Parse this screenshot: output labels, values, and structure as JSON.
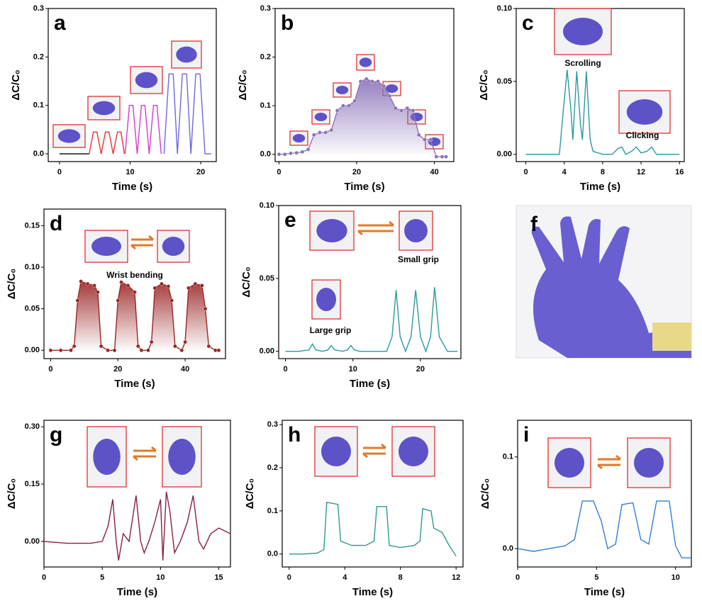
{
  "chart_data": [
    {
      "type": "line",
      "label": "a",
      "xlabel": "Time (s)",
      "ylabel": "ΔC/C₀",
      "xlim": [
        -1.6,
        22.2
      ],
      "ylim": [
        -0.016,
        0.3
      ],
      "xticks": [
        0,
        10,
        20
      ],
      "yticks": [
        {
          "value": 0,
          "label": "0.0"
        },
        0.1,
        0.2,
        0.3
      ],
      "series": [
        {
          "color": "#000000",
          "x": [
            0,
            1,
            2,
            3,
            4.2
          ],
          "values": [
            0,
            0,
            0,
            0,
            0
          ]
        },
        {
          "color": "#e8322d",
          "x": [
            4.2,
            4.8,
            5.3,
            5.9,
            6.5,
            7.0,
            7.6,
            8.2,
            8.7,
            9.2
          ],
          "values": [
            0,
            0.045,
            0.045,
            0,
            0.045,
            0.045,
            0,
            0.045,
            0.045,
            0
          ]
        },
        {
          "color": "#d43ad0",
          "x": [
            9.3,
            9.9,
            10.4,
            11.0,
            11.6,
            12.1,
            12.7,
            13.3,
            13.8,
            14.4
          ],
          "values": [
            0,
            0.1,
            0.1,
            0,
            0.1,
            0.1,
            0,
            0.1,
            0.1,
            0
          ]
        },
        {
          "color": "#6f66e0",
          "x": [
            14.8,
            15.5,
            16.1,
            16.7,
            17.4,
            18.0,
            18.6,
            19.3,
            19.9,
            20.6,
            21.5
          ],
          "values": [
            0,
            0.165,
            0.165,
            0,
            0.165,
            0.165,
            0,
            0.165,
            0.165,
            0,
            0
          ]
        }
      ]
    },
    {
      "type": "line",
      "label": "b",
      "xlabel": "Time (s)",
      "ylabel": "ΔC/C₀",
      "xlim": [
        -1,
        45
      ],
      "ylim": [
        -0.015,
        0.3
      ],
      "xticks": [
        0,
        20,
        40
      ],
      "yticks": [
        {
          "value": 0,
          "label": "0.0"
        },
        0.1,
        0.2,
        0.3
      ],
      "markers": true,
      "fill": true,
      "series": [
        {
          "color": "#8a72b8",
          "x": [
            0,
            1.5,
            3,
            4.5,
            6,
            7.5,
            9,
            10.5,
            12,
            13.5,
            15,
            16.5,
            18,
            19.5,
            21,
            22.5,
            24,
            25.5,
            27,
            28.5,
            30,
            31.5,
            33,
            34.5,
            36,
            37.5,
            39,
            40.5,
            42,
            43
          ],
          "values": [
            0,
            0,
            0.002,
            0.003,
            0.005,
            0.01,
            0.04,
            0.045,
            0.045,
            0.05,
            0.09,
            0.1,
            0.1,
            0.11,
            0.15,
            0.155,
            0.15,
            0.15,
            0.14,
            0.12,
            0.095,
            0.09,
            0.095,
            0.09,
            0.04,
            0.03,
            0.03,
            -0.005,
            -0.005,
            -0.005
          ]
        }
      ]
    },
    {
      "type": "line",
      "label": "c",
      "xlabel": "Time (s)",
      "ylabel": "ΔC/C₀",
      "xlim": [
        -1,
        16.5
      ],
      "ylim": [
        -0.005,
        0.1
      ],
      "xticks": [
        0,
        4,
        8,
        12,
        16
      ],
      "yticks": [
        {
          "value": 0,
          "label": "0.00"
        },
        0.05,
        {
          "value": 0.1,
          "label": "0.10"
        }
      ],
      "annotations": [
        "Scrolling",
        "Clicking"
      ],
      "series": [
        {
          "color": "#2a9a9e",
          "x": [
            0,
            2,
            3.5,
            3.9,
            4.3,
            4.7,
            4.9,
            5.3,
            5.7,
            5.9,
            6.3,
            6.7,
            7,
            8,
            9,
            9.6,
            10,
            10.4,
            11,
            11.5,
            12,
            12.6,
            13.1,
            13.6,
            14,
            16
          ],
          "values": [
            0,
            0,
            0,
            0.03,
            0.058,
            0.03,
            0.01,
            0.057,
            0.02,
            0.01,
            0.057,
            0.01,
            0.002,
            0,
            0,
            0.004,
            0.005,
            0,
            0.002,
            0.005,
            0.001,
            0.002,
            0.005,
            0,
            0,
            0
          ]
        }
      ]
    },
    {
      "type": "line",
      "label": "d",
      "xlabel": "Time (s)",
      "ylabel": "ΔC/C₀",
      "xlim": [
        -2,
        52
      ],
      "ylim": [
        -0.01,
        0.17
      ],
      "xticks": [
        0,
        20,
        40
      ],
      "yticks": [
        {
          "value": 0,
          "label": "0.00"
        },
        0.05,
        {
          "value": 0.1,
          "label": "0.10"
        },
        0.15
      ],
      "markers": true,
      "fill": true,
      "annotations": [
        "Wrist bending"
      ],
      "series": [
        {
          "color": "#9a2424",
          "x": [
            0,
            3,
            6,
            7,
            8,
            9,
            11,
            13,
            14,
            15,
            17,
            19,
            20,
            21,
            23,
            25,
            26,
            27,
            29,
            30,
            31,
            33,
            35,
            36,
            37,
            39,
            40,
            41,
            43,
            45,
            46,
            47,
            49,
            50
          ],
          "values": [
            0,
            0,
            0,
            0.005,
            0.06,
            0.083,
            0.08,
            0.078,
            0.07,
            0.005,
            0,
            0,
            0.06,
            0.082,
            0.078,
            0.07,
            0.005,
            0,
            0,
            0.01,
            0.075,
            0.08,
            0.077,
            0.06,
            0.005,
            0,
            0.01,
            0.075,
            0.08,
            0.078,
            0.05,
            0.005,
            0,
            0
          ]
        }
      ]
    },
    {
      "type": "line",
      "label": "e",
      "xlabel": "Time (s)",
      "ylabel": "ΔC/C₀",
      "xlim": [
        -1,
        26
      ],
      "ylim": [
        -0.005,
        0.1
      ],
      "xticks": [
        0,
        10,
        20
      ],
      "yticks": [
        {
          "value": 0,
          "label": "0.00"
        },
        0.05,
        {
          "value": 0.1,
          "label": "0.10"
        }
      ],
      "annotations": [
        "Large grip",
        "Small grip"
      ],
      "series": [
        {
          "color": "#2a9a9e",
          "x": [
            0,
            2,
            3.5,
            4,
            4.5,
            5.5,
            6.3,
            6.8,
            7.3,
            8.5,
            9.2,
            9.7,
            10.2,
            11,
            13,
            15,
            15.8,
            16.4,
            17,
            17.8,
            18.6,
            19.3,
            20,
            20.8,
            21.5,
            22.1,
            22.8,
            24,
            25.5
          ],
          "values": [
            0,
            0,
            0.001,
            0.005,
            0.001,
            0,
            0.001,
            0.004,
            0.001,
            0,
            0.001,
            0.004,
            0.001,
            0,
            0,
            0,
            0.01,
            0.042,
            0.01,
            0,
            0.01,
            0.042,
            0.01,
            0,
            0.01,
            0.044,
            0.01,
            0,
            0
          ]
        }
      ]
    },
    {
      "type": "line",
      "label": "g",
      "xlabel": "Time (s)",
      "ylabel": "ΔC/C₀",
      "xlim": [
        0,
        16
      ],
      "ylim": [
        -0.067,
        0.317
      ],
      "xticks": [
        0,
        5,
        10,
        15
      ],
      "yticks": [
        {
          "value": 0,
          "label": "0.00"
        },
        0.15,
        {
          "value": 0.3,
          "label": "0.30"
        }
      ],
      "series": [
        {
          "color": "#8a1f3c",
          "x": [
            0,
            2,
            4,
            5,
            5.5,
            5.9,
            6.2,
            6.4,
            6.8,
            7.3,
            7.9,
            8.3,
            8.6,
            9.0,
            9.5,
            10.0,
            10.2,
            10.5,
            10.8,
            11.2,
            11.7,
            12.3,
            12.8,
            13.3,
            13.7,
            14.3,
            15,
            16
          ],
          "values": [
            0,
            -0.005,
            -0.005,
            0,
            0.04,
            0.11,
            0,
            -0.05,
            0.02,
            0,
            0.12,
            0,
            -0.03,
            0,
            0.05,
            0.11,
            -0.05,
            0.13,
            0.08,
            -0.03,
            0,
            0.05,
            0.12,
            0,
            -0.02,
            0.02,
            0.035,
            0.02
          ]
        }
      ]
    },
    {
      "type": "line",
      "label": "h",
      "xlabel": "Time (s)",
      "ylabel": "ΔC/C₀",
      "xlim": [
        -0.5,
        12.5
      ],
      "ylim": [
        -0.03,
        0.31
      ],
      "xticks": [
        0,
        4,
        8,
        12
      ],
      "yticks": [
        {
          "value": 0,
          "label": "0.0"
        },
        0.1,
        0.2,
        0.3
      ],
      "series": [
        {
          "color": "#2a9a8e",
          "x": [
            0,
            1,
            2,
            2.5,
            2.7,
            3.5,
            3.7,
            4.5,
            5.5,
            6.1,
            6.3,
            7,
            7.2,
            8,
            9,
            9.4,
            9.6,
            10.2,
            10.4,
            11,
            11.5,
            12
          ],
          "values": [
            0,
            0,
            0.002,
            0.01,
            0.12,
            0.115,
            0.03,
            0.02,
            0.02,
            0.03,
            0.11,
            0.11,
            0.02,
            0.015,
            0.02,
            0.03,
            0.105,
            0.1,
            0.06,
            0.05,
            0.02,
            -0.005
          ]
        }
      ]
    },
    {
      "type": "line",
      "label": "i",
      "xlabel": "Time (s)",
      "ylabel": "ΔC/C₀",
      "xlim": [
        0,
        11
      ],
      "ylim": [
        -0.02,
        0.14
      ],
      "xticks": [
        0,
        5,
        10
      ],
      "yticks": [
        {
          "value": 0,
          "label": "0.0"
        },
        0.1
      ],
      "series": [
        {
          "color": "#2f7fd8",
          "x": [
            0,
            1,
            2,
            3,
            3.6,
            4.1,
            4.8,
            5.3,
            5.7,
            6.2,
            6.6,
            7.3,
            7.8,
            8.3,
            8.8,
            9.6,
            10,
            10.4,
            11
          ],
          "values": [
            0,
            -0.003,
            0,
            0.003,
            0.01,
            0.052,
            0.052,
            0.03,
            0,
            0.005,
            0.048,
            0.05,
            0.01,
            0.005,
            0.052,
            0.052,
            0.003,
            -0.01,
            -0.01
          ]
        }
      ]
    }
  ],
  "photo": {
    "label": "f"
  }
}
